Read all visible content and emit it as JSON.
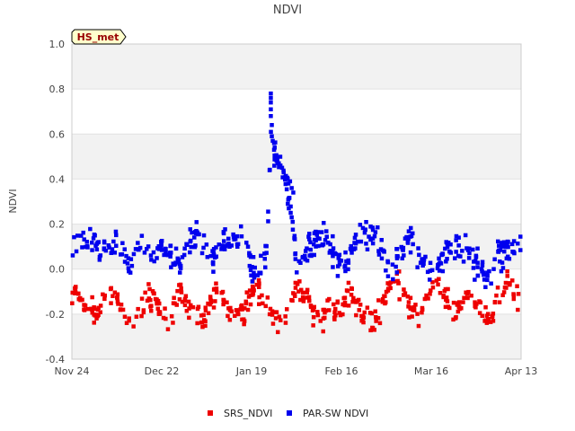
{
  "chart_data": {
    "type": "scatter",
    "title": "NDVI",
    "ylabel": "NDVI",
    "xlabel": "",
    "badge": "HS_met",
    "ylim": [
      -0.4,
      1.0
    ],
    "xlim": [
      0,
      140
    ],
    "y_ticks": [
      {
        "value": 1.0,
        "label": "1.0"
      },
      {
        "value": 0.8,
        "label": "0.8"
      },
      {
        "value": 0.6,
        "label": "0.6"
      },
      {
        "value": 0.4,
        "label": "0.4"
      },
      {
        "value": 0.2,
        "label": "0.2"
      },
      {
        "value": 0.0,
        "label": "0.0"
      },
      {
        "value": -0.2,
        "label": "-0.2"
      },
      {
        "value": -0.4,
        "label": "-0.4"
      }
    ],
    "x_ticks": [
      {
        "value": 0,
        "label": "Nov 24"
      },
      {
        "value": 28,
        "label": "Dec 22"
      },
      {
        "value": 56,
        "label": "Jan 19"
      },
      {
        "value": 84,
        "label": "Feb 16"
      },
      {
        "value": 112,
        "label": "Mar 16"
      },
      {
        "value": 140,
        "label": "Apr 13"
      }
    ],
    "bands": [
      [
        0.8,
        1.0
      ],
      [
        0.4,
        0.6
      ],
      [
        0.0,
        0.2
      ],
      [
        -0.4,
        -0.2
      ]
    ],
    "grid": true,
    "legend_position": "bottom",
    "series": [
      {
        "name": "SRS_NDVI",
        "color": "#ee0000",
        "profile": [
          [
            0,
            -0.1
          ],
          [
            2,
            -0.12
          ],
          [
            4,
            -0.15
          ],
          [
            6,
            -0.18
          ],
          [
            8,
            -0.2
          ],
          [
            10,
            -0.16
          ],
          [
            12,
            -0.1
          ],
          [
            14,
            -0.13
          ],
          [
            16,
            -0.18
          ],
          [
            18,
            -0.24
          ],
          [
            20,
            -0.21
          ],
          [
            22,
            -0.16
          ],
          [
            24,
            -0.11
          ],
          [
            26,
            -0.14
          ],
          [
            28,
            -0.19
          ],
          [
            30,
            -0.21
          ],
          [
            32,
            -0.16
          ],
          [
            34,
            -0.11
          ],
          [
            36,
            -0.16
          ],
          [
            38,
            -0.21
          ],
          [
            40,
            -0.24
          ],
          [
            42,
            -0.19
          ],
          [
            44,
            -0.13
          ],
          [
            46,
            -0.09
          ],
          [
            48,
            -0.14
          ],
          [
            50,
            -0.19
          ],
          [
            52,
            -0.21
          ],
          [
            54,
            -0.17
          ],
          [
            56,
            -0.09
          ],
          [
            58,
            -0.08
          ],
          [
            60,
            -0.13
          ],
          [
            62,
            -0.19
          ],
          [
            64,
            -0.23
          ],
          [
            66,
            -0.24
          ],
          [
            68,
            -0.16
          ],
          [
            70,
            -0.07
          ],
          [
            72,
            -0.1
          ],
          [
            74,
            -0.15
          ],
          [
            76,
            -0.2
          ],
          [
            78,
            -0.21
          ],
          [
            80,
            -0.19
          ],
          [
            82,
            -0.2
          ],
          [
            84,
            -0.18
          ],
          [
            86,
            -0.09
          ],
          [
            88,
            -0.12
          ],
          [
            90,
            -0.17
          ],
          [
            92,
            -0.22
          ],
          [
            94,
            -0.24
          ],
          [
            96,
            -0.18
          ],
          [
            98,
            -0.09
          ],
          [
            100,
            -0.05
          ],
          [
            102,
            -0.07
          ],
          [
            104,
            -0.12
          ],
          [
            106,
            -0.17
          ],
          [
            108,
            -0.21
          ],
          [
            110,
            -0.17
          ],
          [
            112,
            -0.08
          ],
          [
            114,
            -0.05
          ],
          [
            116,
            -0.1
          ],
          [
            118,
            -0.17
          ],
          [
            120,
            -0.19
          ],
          [
            122,
            -0.15
          ],
          [
            124,
            -0.1
          ],
          [
            126,
            -0.13
          ],
          [
            128,
            -0.19
          ],
          [
            130,
            -0.22
          ],
          [
            132,
            -0.18
          ],
          [
            134,
            -0.1
          ],
          [
            136,
            -0.04
          ],
          [
            138,
            -0.1
          ],
          [
            140,
            -0.17
          ]
        ],
        "n": 430,
        "spread": 0.028,
        "seed": 7
      },
      {
        "name": "PAR-SW NDVI",
        "color": "#0000ee",
        "profile": [
          [
            0,
            0.1
          ],
          [
            2,
            0.13
          ],
          [
            4,
            0.13
          ],
          [
            6,
            0.12
          ],
          [
            8,
            0.11
          ],
          [
            10,
            0.07
          ],
          [
            12,
            0.1
          ],
          [
            14,
            0.13
          ],
          [
            16,
            0.11
          ],
          [
            18,
            -0.02
          ],
          [
            20,
            0.11
          ],
          [
            22,
            0.14
          ],
          [
            24,
            0.1
          ],
          [
            26,
            0.06
          ],
          [
            28,
            0.11
          ],
          [
            30,
            0.08
          ],
          [
            32,
            0.04
          ],
          [
            34,
            0.02
          ],
          [
            36,
            0.09
          ],
          [
            38,
            0.14
          ],
          [
            40,
            0.13
          ],
          [
            42,
            0.08
          ],
          [
            44,
            0.06
          ],
          [
            46,
            0.1
          ],
          [
            48,
            0.13
          ],
          [
            50,
            0.14
          ],
          [
            52,
            0.13
          ],
          [
            54,
            0.09
          ],
          [
            56,
            0.02
          ],
          [
            58,
            -0.02
          ],
          [
            60,
            0.02
          ],
          [
            61,
            0.15
          ],
          [
            62,
            0.55
          ],
          [
            64,
            0.47
          ],
          [
            66,
            0.41
          ],
          [
            67,
            0.38
          ],
          [
            68,
            0.3
          ],
          [
            70,
            0.03
          ],
          [
            72,
            0.06
          ],
          [
            74,
            0.09
          ],
          [
            76,
            0.13
          ],
          [
            78,
            0.14
          ],
          [
            80,
            0.13
          ],
          [
            82,
            0.06
          ],
          [
            84,
            0.02
          ],
          [
            86,
            0.04
          ],
          [
            88,
            0.1
          ],
          [
            90,
            0.14
          ],
          [
            92,
            0.16
          ],
          [
            94,
            0.15
          ],
          [
            96,
            0.1
          ],
          [
            98,
            0.02
          ],
          [
            100,
            0.01
          ],
          [
            102,
            0.06
          ],
          [
            104,
            0.11
          ],
          [
            106,
            0.13
          ],
          [
            108,
            0.07
          ],
          [
            110,
            0.02
          ],
          [
            112,
            -0.02
          ],
          [
            114,
            0.02
          ],
          [
            116,
            0.05
          ],
          [
            118,
            0.09
          ],
          [
            120,
            0.1
          ],
          [
            122,
            0.1
          ],
          [
            124,
            0.05
          ],
          [
            126,
            0.02
          ],
          [
            128,
            0.0
          ],
          [
            130,
            -0.03
          ],
          [
            132,
            0.05
          ],
          [
            134,
            0.08
          ],
          [
            136,
            0.09
          ],
          [
            138,
            0.1
          ],
          [
            140,
            0.11
          ]
        ],
        "n": 480,
        "spread": 0.03,
        "seed": 13,
        "extra_points": [
          [
            62,
            0.78
          ],
          [
            62,
            0.76
          ],
          [
            62,
            0.74
          ],
          [
            62,
            0.71
          ],
          [
            62,
            0.68
          ],
          [
            62.3,
            0.64
          ],
          [
            62.3,
            0.59
          ],
          [
            62.6,
            0.57
          ],
          [
            63,
            0.56
          ],
          [
            63.2,
            0.54
          ],
          [
            63,
            0.53
          ],
          [
            64,
            0.48
          ],
          [
            64.5,
            0.47
          ],
          [
            65,
            0.46
          ],
          [
            65.5,
            0.45
          ],
          [
            66,
            0.43
          ],
          [
            66.5,
            0.41
          ],
          [
            67,
            0.4
          ],
          [
            67.5,
            0.38
          ],
          [
            68,
            0.39
          ],
          [
            68.5,
            0.36
          ],
          [
            69,
            0.34
          ],
          [
            67.3,
            0.29
          ],
          [
            67.6,
            0.27
          ],
          [
            68.2,
            0.25
          ],
          [
            68.5,
            0.23
          ],
          [
            68.8,
            0.21
          ]
        ]
      }
    ]
  }
}
